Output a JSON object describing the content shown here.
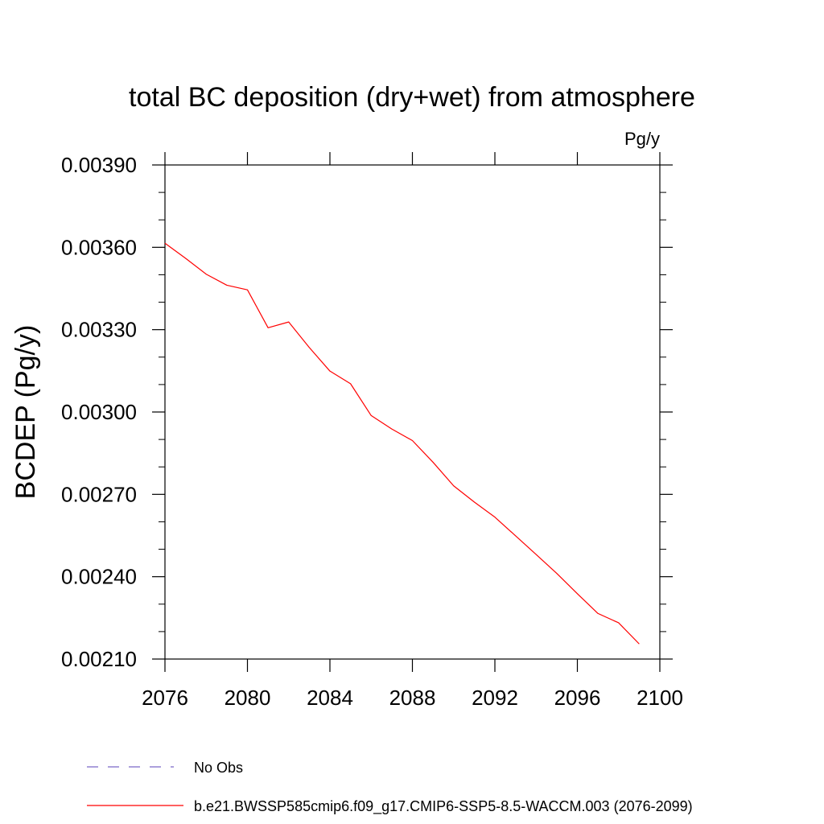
{
  "chart_data": {
    "type": "line",
    "title": "total BC deposition (dry+wet) from atmosphere",
    "units": "Pg/y",
    "xlabel": "",
    "ylabel": "BCDEP  (Pg/y)",
    "xlim": [
      2076,
      2100
    ],
    "ylim": [
      0.0021,
      0.0039
    ],
    "x_ticks": [
      "2076",
      "2080",
      "2084",
      "2088",
      "2092",
      "2096",
      "2100"
    ],
    "y_ticks": [
      "0.00210",
      "0.00240",
      "0.00270",
      "0.00300",
      "0.00330",
      "0.00360",
      "0.00390"
    ],
    "grid": false,
    "legend_placement": "bottom",
    "series": [
      {
        "name": "b.e21.BWSSP585cmip6.f09_g17.CMIP6-SSP5-8.5-WACCM.003 (2076-2099)",
        "color": "#ff0000",
        "style": "solid",
        "x": [
          2076,
          2077,
          2078,
          2079,
          2080,
          2081,
          2082,
          2083,
          2084,
          2085,
          2086,
          2087,
          2088,
          2089,
          2090,
          2091,
          2092,
          2093,
          2094,
          2095,
          2096,
          2097,
          2098,
          2099
        ],
        "values": [
          0.003615,
          0.00356,
          0.003502,
          0.003462,
          0.003445,
          0.003307,
          0.003328,
          0.003235,
          0.003149,
          0.003103,
          0.002987,
          0.002938,
          0.002896,
          0.002817,
          0.002731,
          0.002672,
          0.002617,
          0.002549,
          0.002481,
          0.002412,
          0.002338,
          0.002266,
          0.002232,
          0.002155
        ]
      }
    ],
    "legend": [
      {
        "label": "No Obs",
        "color": "#7b68c8",
        "style": "dashed"
      },
      {
        "label": "b.e21.BWSSP585cmip6.f09_g17.CMIP6-SSP5-8.5-WACCM.003 (2076-2099)",
        "color": "#ff0000",
        "style": "solid"
      }
    ]
  }
}
